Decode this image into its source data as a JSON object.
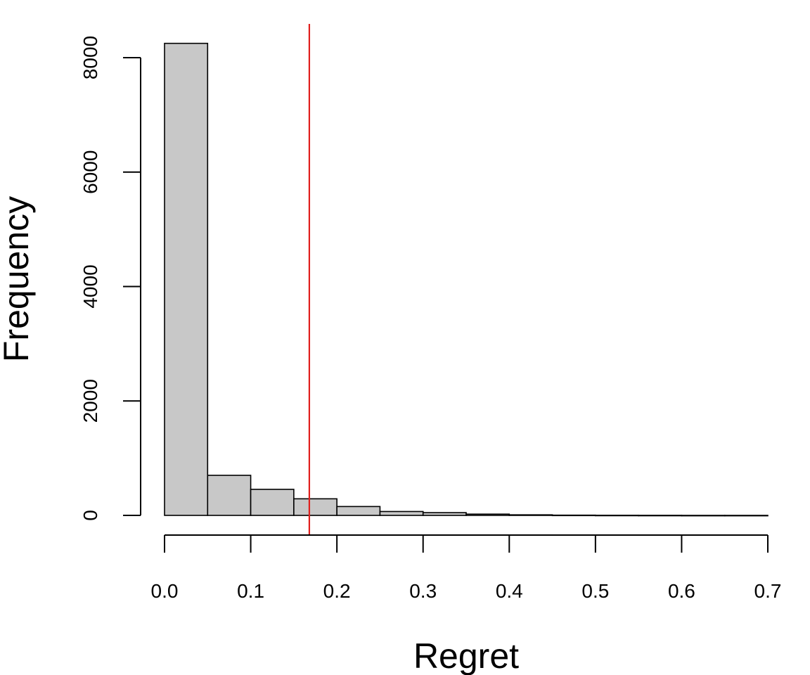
{
  "chart_data": {
    "type": "bar",
    "title": "",
    "xlabel": "Regret",
    "ylabel": "Frequency",
    "bin_edges": [
      0.0,
      0.05,
      0.1,
      0.15,
      0.2,
      0.25,
      0.3,
      0.35,
      0.4,
      0.45,
      0.5,
      0.55,
      0.6,
      0.65,
      0.7
    ],
    "values": [
      8250,
      700,
      455,
      290,
      155,
      68,
      48,
      22,
      10,
      4,
      2,
      1,
      0,
      0
    ],
    "xlim": [
      0.0,
      0.7
    ],
    "ylim": [
      0,
      8000
    ],
    "x_ticks": [
      "0.0",
      "0.1",
      "0.2",
      "0.3",
      "0.4",
      "0.5",
      "0.6",
      "0.7"
    ],
    "y_ticks": [
      "0",
      "2000",
      "4000",
      "6000",
      "8000"
    ],
    "vline": {
      "x": 0.168
    },
    "grid": false,
    "legend": "none",
    "colors": {
      "bar_fill": "#c8c8c8",
      "bar_stroke": "#000000",
      "vline": "#e0201e",
      "axis": "#000000"
    }
  }
}
